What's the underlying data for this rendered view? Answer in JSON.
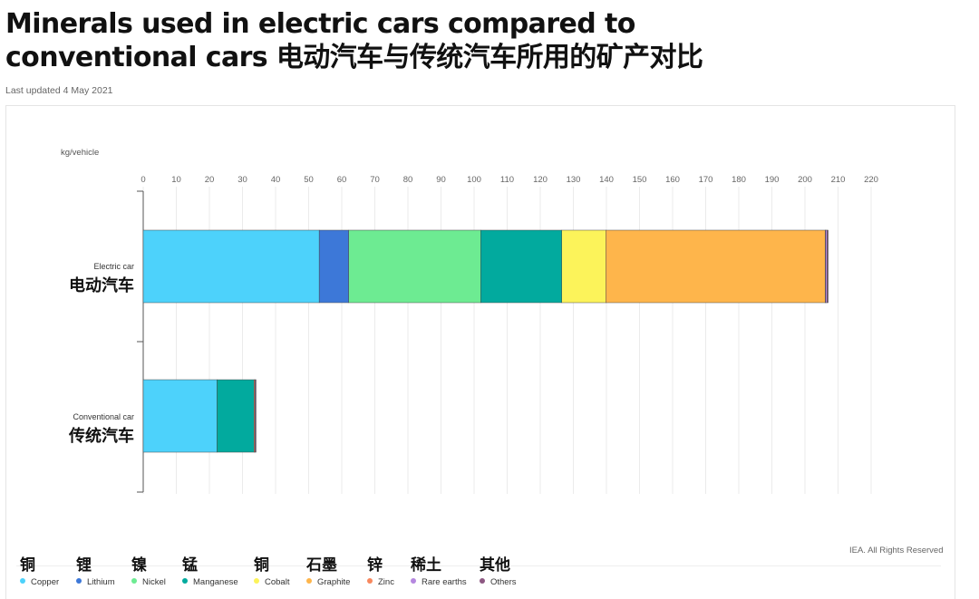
{
  "page": {
    "title_line1": "Minerals used in electric cars compared to",
    "title_line2": "conventional cars 电动汽车与传统汽车所用的矿产对比",
    "last_updated": "Last updated 4 May 2021",
    "credit": "IEA. All Rights Reserved"
  },
  "chart_data": {
    "type": "bar",
    "orientation": "horizontal",
    "stacked": true,
    "ylabel": "kg/vehicle",
    "xlim": [
      0,
      220
    ],
    "xticks": [
      0,
      10,
      20,
      30,
      40,
      50,
      60,
      70,
      80,
      90,
      100,
      110,
      120,
      130,
      140,
      150,
      160,
      170,
      180,
      190,
      200,
      210,
      220
    ],
    "grid": true,
    "legend_position": "bottom",
    "categories": [
      {
        "en": "Electric car",
        "zh": "电动汽车"
      },
      {
        "en": "Conventional car",
        "zh": "传统汽车"
      }
    ],
    "series": [
      {
        "name": "Copper",
        "zh": "铜",
        "color": "#4dd2fb",
        "values": [
          53.2,
          22.3
        ]
      },
      {
        "name": "Lithium",
        "zh": "锂",
        "color": "#3d78d8",
        "values": [
          8.9,
          0
        ]
      },
      {
        "name": "Nickel",
        "zh": "镍",
        "color": "#6deb92",
        "values": [
          39.9,
          0
        ]
      },
      {
        "name": "Manganese",
        "zh": "锰",
        "color": "#02aa9e",
        "values": [
          24.5,
          11.2
        ]
      },
      {
        "name": "Cobalt",
        "zh": "铜",
        "color": "#fcf35a",
        "values": [
          13.3,
          0
        ]
      },
      {
        "name": "Graphite",
        "zh": "石墨",
        "color": "#feb54b",
        "values": [
          66.3,
          0
        ]
      },
      {
        "name": "Zinc",
        "zh": "锌",
        "color": "#f7885e",
        "values": [
          0.1,
          0.3
        ]
      },
      {
        "name": "Rare earths",
        "zh": "稀土",
        "color": "#b587df",
        "values": [
          0.5,
          0
        ]
      },
      {
        "name": "Others",
        "zh": "其他",
        "color": "#8d5882",
        "values": [
          0.3,
          0.3
        ]
      }
    ]
  }
}
